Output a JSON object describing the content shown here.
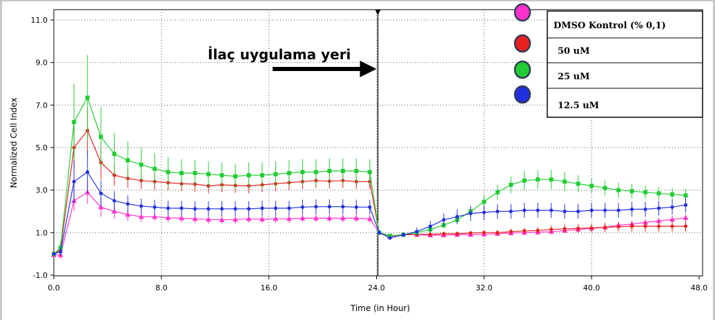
{
  "chart_data": {
    "type": "line",
    "title": "",
    "xlabel": "Time (in Hour)",
    "ylabel": "Normalized Cell Index",
    "xlim": [
      0,
      48
    ],
    "ylim": [
      -1,
      12
    ],
    "x_ticks": [
      0,
      8,
      16,
      24,
      32,
      40,
      48
    ],
    "x_tick_labels": [
      "0.0",
      "8.0",
      "16.0",
      "24.0",
      "32.0",
      "40.0",
      "48.0"
    ],
    "y_ticks": [
      -1,
      1,
      3,
      5,
      7,
      9,
      11
    ],
    "y_tick_labels": [
      "-1.0",
      "1.0",
      "3.0",
      "5.0",
      "7.0",
      "9.0",
      "11.0"
    ],
    "grid": true,
    "legend_position": "top-right",
    "annotation": {
      "text": "İlaç uygulama yeri",
      "arrow_to_x": 24.0
    },
    "marker_line_x": 24.0,
    "x": [
      0,
      0.5,
      1.5,
      2.5,
      3.5,
      4.5,
      5.5,
      6.5,
      7.5,
      8.5,
      9.5,
      10.5,
      11.5,
      12.5,
      13.5,
      14.5,
      15.5,
      16.5,
      17.5,
      18.5,
      19.5,
      20.5,
      21.5,
      22.5,
      23.5,
      24.2,
      25,
      26,
      27,
      28,
      29,
      30,
      31,
      32,
      33,
      34,
      35,
      36,
      37,
      38,
      39,
      40,
      41,
      42,
      43,
      44,
      45,
      46,
      47
    ],
    "series": [
      {
        "name": "DMSO Kontrol (% 0,1)",
        "color": "#ff33cc",
        "marker": "triangle",
        "values": [
          -0.05,
          -0.05,
          2.5,
          2.9,
          2.2,
          2.0,
          1.85,
          1.75,
          1.75,
          1.7,
          1.68,
          1.65,
          1.62,
          1.6,
          1.62,
          1.65,
          1.63,
          1.65,
          1.65,
          1.68,
          1.68,
          1.68,
          1.68,
          1.68,
          1.65,
          1.0,
          0.82,
          0.9,
          0.9,
          0.88,
          0.88,
          0.9,
          0.9,
          0.92,
          0.95,
          0.98,
          1.0,
          1.02,
          1.05,
          1.1,
          1.15,
          1.2,
          1.25,
          1.35,
          1.4,
          1.48,
          1.55,
          1.62,
          1.7
        ],
        "errors": [
          0.05,
          0.2,
          0.5,
          0.55,
          0.45,
          0.35,
          0.3,
          0.25,
          0.2,
          0.2,
          0.2,
          0.2,
          0.2,
          0.18,
          0.2,
          0.18,
          0.18,
          0.18,
          0.18,
          0.18,
          0.18,
          0.18,
          0.18,
          0.18,
          0.18,
          0.1,
          0.05,
          0.08,
          0.08,
          0.08,
          0.08,
          0.08,
          0.1,
          0.1,
          0.1,
          0.1,
          0.1,
          0.12,
          0.12,
          0.12,
          0.12,
          0.12,
          0.15,
          0.15,
          0.15,
          0.15,
          0.15,
          0.18,
          0.18
        ]
      },
      {
        "name": "50 uM",
        "color": "#e82020",
        "marker": "dot",
        "values": [
          0.0,
          0.2,
          5.0,
          5.8,
          4.3,
          3.7,
          3.55,
          3.45,
          3.4,
          3.35,
          3.3,
          3.28,
          3.2,
          3.25,
          3.22,
          3.2,
          3.25,
          3.3,
          3.35,
          3.4,
          3.45,
          3.42,
          3.45,
          3.4,
          3.4,
          1.0,
          0.85,
          0.9,
          0.92,
          0.92,
          0.95,
          0.95,
          0.98,
          1.0,
          1.0,
          1.05,
          1.08,
          1.1,
          1.15,
          1.18,
          1.2,
          1.22,
          1.25,
          1.28,
          1.3,
          1.3,
          1.3,
          1.3,
          1.3
        ],
        "errors": [
          0.05,
          0.3,
          1.0,
          1.1,
          0.8,
          0.5,
          0.45,
          0.4,
          0.4,
          0.35,
          0.35,
          0.35,
          0.35,
          0.35,
          0.35,
          0.35,
          0.35,
          0.35,
          0.35,
          0.35,
          0.35,
          0.35,
          0.35,
          0.35,
          0.35,
          0.1,
          0.05,
          0.1,
          0.1,
          0.1,
          0.1,
          0.1,
          0.1,
          0.12,
          0.12,
          0.15,
          0.15,
          0.15,
          0.18,
          0.2,
          0.2,
          0.2,
          0.22,
          0.22,
          0.25,
          0.25,
          0.25,
          0.25,
          0.25
        ]
      },
      {
        "name": "25 uM",
        "color": "#22cc33",
        "marker": "square",
        "values": [
          0.0,
          0.3,
          6.2,
          7.35,
          5.5,
          4.7,
          4.4,
          4.2,
          4.0,
          3.85,
          3.8,
          3.8,
          3.75,
          3.7,
          3.65,
          3.7,
          3.7,
          3.75,
          3.8,
          3.85,
          3.85,
          3.9,
          3.9,
          3.9,
          3.85,
          1.0,
          0.85,
          0.9,
          1.0,
          1.15,
          1.35,
          1.6,
          2.0,
          2.45,
          2.9,
          3.25,
          3.45,
          3.5,
          3.5,
          3.4,
          3.3,
          3.2,
          3.1,
          3.0,
          2.95,
          2.9,
          2.85,
          2.8,
          2.75
        ],
        "errors": [
          0.05,
          0.3,
          1.8,
          2.0,
          1.4,
          1.0,
          0.9,
          0.8,
          0.75,
          0.7,
          0.65,
          0.6,
          0.6,
          0.6,
          0.6,
          0.6,
          0.6,
          0.6,
          0.6,
          0.6,
          0.6,
          0.6,
          0.6,
          0.6,
          0.6,
          0.1,
          0.05,
          0.1,
          0.1,
          0.15,
          0.15,
          0.2,
          0.25,
          0.3,
          0.35,
          0.4,
          0.45,
          0.45,
          0.45,
          0.45,
          0.4,
          0.35,
          0.35,
          0.35,
          0.35,
          0.3,
          0.3,
          0.3,
          0.3
        ]
      },
      {
        "name": "12.5 uM",
        "color": "#2030dd",
        "marker": "dot",
        "values": [
          0.0,
          0.1,
          3.4,
          3.85,
          2.85,
          2.5,
          2.35,
          2.25,
          2.2,
          2.15,
          2.15,
          2.12,
          2.12,
          2.12,
          2.12,
          2.12,
          2.15,
          2.15,
          2.15,
          2.2,
          2.22,
          2.22,
          2.22,
          2.2,
          2.2,
          1.0,
          0.75,
          0.9,
          1.05,
          1.3,
          1.6,
          1.75,
          1.9,
          1.95,
          2.0,
          2.0,
          2.05,
          2.05,
          2.05,
          2.0,
          2.0,
          2.05,
          2.05,
          2.05,
          2.1,
          2.1,
          2.15,
          2.2,
          2.3
        ],
        "errors": [
          0.05,
          0.2,
          1.0,
          1.0,
          0.6,
          0.45,
          0.4,
          0.35,
          0.35,
          0.35,
          0.35,
          0.35,
          0.35,
          0.35,
          0.35,
          0.35,
          0.35,
          0.35,
          0.35,
          0.35,
          0.35,
          0.35,
          0.35,
          0.35,
          0.35,
          0.1,
          0.05,
          0.1,
          0.2,
          0.25,
          0.3,
          0.35,
          0.35,
          0.35,
          0.35,
          0.35,
          0.35,
          0.35,
          0.35,
          0.35,
          0.35,
          0.35,
          0.35,
          0.35,
          0.35,
          0.35,
          0.35,
          0.35,
          0.35
        ]
      }
    ]
  }
}
